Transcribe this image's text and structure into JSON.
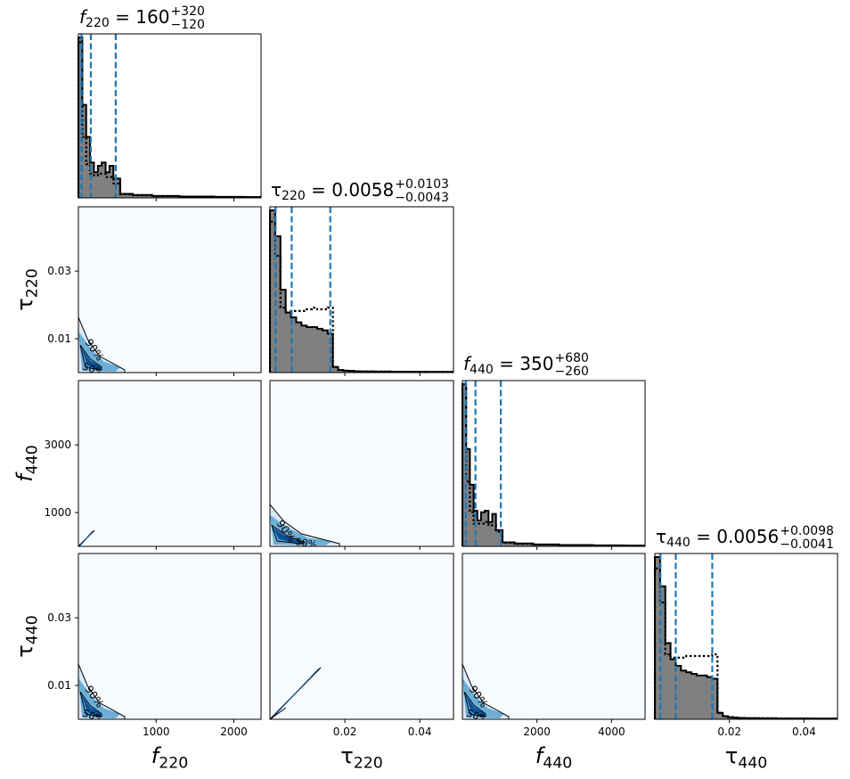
{
  "chart_data": {
    "type": "corner",
    "parameters": [
      {
        "name": "f",
        "sub": "220",
        "range": [
          0,
          2350
        ],
        "ticks": [
          1000,
          2000
        ],
        "tick_labels": [
          "1000",
          "2000"
        ]
      },
      {
        "name": "τ",
        "sub": "220",
        "range": [
          0,
          0.049
        ],
        "ticks": [
          0.01,
          0.03
        ],
        "tick_labels": [
          "0.01",
          "0.03"
        ],
        "x_ticks": [
          0.02,
          0.04
        ],
        "x_tick_labels": [
          "0.02",
          "0.04"
        ]
      },
      {
        "name": "f",
        "sub": "440",
        "range": [
          0,
          4900
        ],
        "ticks": [
          1000,
          3000
        ],
        "tick_labels": [
          "1000",
          "3000"
        ],
        "x_ticks": [
          2000,
          4000
        ],
        "x_tick_labels": [
          "2000",
          "4000"
        ]
      },
      {
        "name": "τ",
        "sub": "440",
        "range": [
          0,
          0.049
        ],
        "ticks": [
          0.01,
          0.03
        ],
        "tick_labels": [
          "0.01",
          "0.03"
        ],
        "x_ticks": [
          0.02,
          0.04
        ],
        "x_tick_labels": [
          "0.02",
          "0.04"
        ]
      }
    ],
    "titles": [
      {
        "sym": "f",
        "sub": "220",
        "eq": " = 160",
        "sup": "+320",
        "low": "−120"
      },
      {
        "sym": "τ",
        "sub": "220",
        "eq": " = 0.0058",
        "sup": "+0.0103",
        "low": "−0.0043"
      },
      {
        "sym": "f",
        "sub": "440",
        "eq": " = 350",
        "sup": "+680",
        "low": "−260"
      },
      {
        "sym": "τ",
        "sub": "440",
        "eq": " = 0.0056",
        "sup": "+0.0098",
        "low": "−0.0041"
      }
    ],
    "quantiles": [
      [
        40,
        160,
        480
      ],
      [
        0.0015,
        0.0058,
        0.0161
      ],
      [
        90,
        350,
        1030
      ],
      [
        0.0015,
        0.0056,
        0.0154
      ]
    ],
    "histograms": [
      {
        "x": [
          25,
          75,
          125,
          175,
          225,
          275,
          325,
          375,
          425,
          475,
          600,
          800,
          1100,
          1500,
          2000,
          2300
        ],
        "posterior": [
          100,
          58,
          38,
          22,
          16,
          20,
          22,
          16,
          20,
          12,
          2.5,
          1.8,
          1.2,
          0.8,
          0.6,
          0.5
        ],
        "prior": [
          97,
          38,
          21,
          15,
          14,
          15,
          15,
          13,
          13,
          9,
          2.2,
          1.6,
          1.1,
          0.7,
          0.5,
          0.5
        ]
      },
      {
        "x": [
          0.0007,
          0.0021,
          0.0035,
          0.0049,
          0.0063,
          0.0077,
          0.0091,
          0.0105,
          0.0119,
          0.0133,
          0.0147,
          0.0161,
          0.0175,
          0.0189,
          0.0203,
          0.0217,
          0.0231,
          0.025,
          0.03,
          0.035,
          0.04,
          0.045
        ],
        "posterior": [
          100,
          84,
          51,
          37,
          34,
          31,
          29,
          28,
          28,
          27,
          26,
          24,
          3.4,
          1.6,
          1.2,
          1.0,
          0.8,
          0.7,
          0.6,
          0.5,
          0.5,
          0.4
        ],
        "prior": [
          93,
          72,
          40,
          37,
          38,
          38,
          38,
          39,
          40,
          39,
          39,
          40,
          3.4,
          1.6,
          1.2,
          1.0,
          0.8,
          0.7,
          0.6,
          0.5,
          0.5,
          0.4
        ]
      },
      {
        "x": [
          50,
          150,
          250,
          350,
          450,
          550,
          650,
          750,
          850,
          950,
          1200,
          1600,
          2200,
          3000,
          4000,
          4700
        ],
        "posterior": [
          100,
          60,
          38,
          22,
          16,
          21,
          22,
          15,
          20,
          10,
          2.5,
          1.8,
          1.2,
          0.8,
          0.6,
          0.5
        ],
        "prior": [
          97,
          40,
          21,
          14,
          14,
          14,
          15,
          13,
          13,
          9,
          2.2,
          1.6,
          1.1,
          0.7,
          0.5,
          0.5
        ]
      },
      {
        "x": [
          0.0007,
          0.0021,
          0.0035,
          0.0049,
          0.0063,
          0.0077,
          0.0091,
          0.0105,
          0.0119,
          0.0133,
          0.0147,
          0.0161,
          0.0175,
          0.0189,
          0.0203,
          0.0217,
          0.0231,
          0.025,
          0.03,
          0.035,
          0.04,
          0.045
        ],
        "posterior": [
          100,
          82,
          47,
          37,
          33,
          30,
          29,
          28,
          27,
          27,
          26,
          25,
          4,
          1.9,
          1.3,
          1.0,
          0.8,
          0.7,
          0.6,
          0.5,
          0.5,
          0.4
        ],
        "prior": [
          93,
          72,
          40,
          38,
          38,
          38,
          39,
          39,
          39,
          39,
          39,
          40,
          4,
          1.9,
          1.3,
          1.0,
          0.8,
          0.7,
          0.6,
          0.5,
          0.5,
          0.4
        ]
      }
    ],
    "contour_labels": [
      "90%",
      "50%"
    ],
    "colors": {
      "hist_fill": "#808080",
      "quantile_line": "#1f77b4",
      "density_bg": "#f7fbff",
      "density_mid": "#6baed6",
      "density_core": "#08519c"
    }
  }
}
